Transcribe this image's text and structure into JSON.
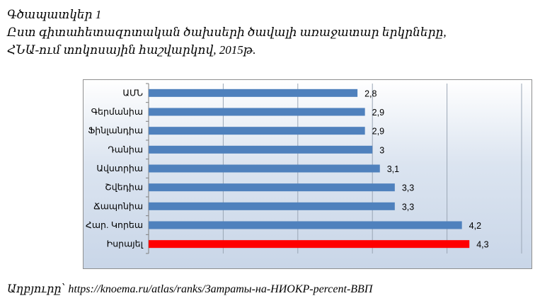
{
  "figure": {
    "caption_number": "Գծապատկեր 1",
    "title_line1": "Ըստ գիտահետազոտական ծախսերի ծավալի առաջատար երկրները,",
    "title_line2": "ՀՆԱ-ում տոկոսային հաշվարկով, 2015թ.",
    "source": "Աղբյուրը՝ https://knoema.ru/atlas/ranks/Затраты-на-НИОКР-percent-ВВП"
  },
  "chart_data": {
    "type": "bar",
    "orientation": "horizontal",
    "categories": [
      "ԱՄՆ",
      "Գերմանիա",
      "Ֆինլանդիա",
      "Դանիա",
      "Ավստրիա",
      "Շվեդիա",
      "Ճապոնիա",
      "Հար. Կորեա",
      "Իսրայել"
    ],
    "values": [
      2.8,
      2.9,
      2.9,
      3,
      3.1,
      3.3,
      3.3,
      4.2,
      4.3
    ],
    "value_labels": [
      "2,8",
      "2,9",
      "2,9",
      "3",
      "3,1",
      "3,3",
      "3,3",
      "4,2",
      "4,3"
    ],
    "bar_colors": [
      "#4f81bd",
      "#4f81bd",
      "#4f81bd",
      "#4f81bd",
      "#4f81bd",
      "#4f81bd",
      "#4f81bd",
      "#4f81bd",
      "#ff0000"
    ],
    "xlim": [
      0,
      5
    ],
    "x_tick_labels_visible": false,
    "grid": "vertical",
    "legend": "none"
  }
}
